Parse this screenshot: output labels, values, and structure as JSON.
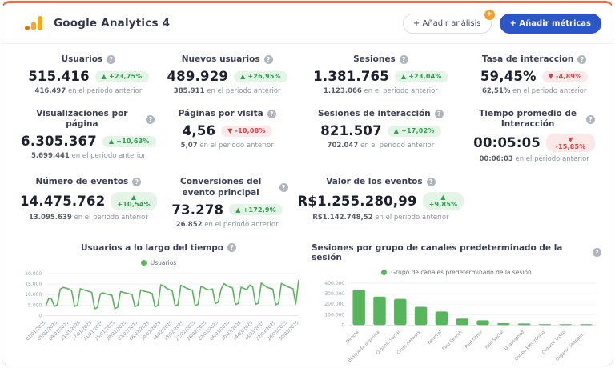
{
  "header": {
    "title": "Google Analytics 4",
    "add_analysis_label": "+ Añadir análisis",
    "add_analysis_badge": "+",
    "add_metrics_label": "+ Añadir métricas"
  },
  "colors": {
    "accent_top_border": "#ED6A45",
    "brand_orange": "#F9AB00",
    "chart_green": "#57B65B",
    "badge_green_text": "#2F9E4F",
    "badge_red_text": "#DE4040",
    "primary_button_blue": "#2B55C8"
  },
  "metrics": [
    {
      "title": "Usuarios",
      "value": "515.416",
      "change": "▲ +23,75%",
      "direction": "up",
      "prev_value": "416.497",
      "prev_text": "en el periodo anterior"
    },
    {
      "title": "Nuevos usuarios",
      "value": "489.929",
      "change": "▲ +26,95%",
      "direction": "up",
      "prev_value": "385.911",
      "prev_text": "en el periodo anterior"
    },
    {
      "title": "Sesiones",
      "value": "1.381.765",
      "change": "▲ +23,04%",
      "direction": "up",
      "prev_value": "1.123.066",
      "prev_text": "en el periodo anterior"
    },
    {
      "title": "Tasa de interaccion",
      "value": "59,45%",
      "change": "▼ -4,89%",
      "direction": "down",
      "prev_value": "62,51%",
      "prev_text": "en el periodo anterior"
    },
    {
      "title": "Visualizaciones por página",
      "value": "6.305.367",
      "change": "▲ +10,63%",
      "direction": "up",
      "prev_value": "5.699.441",
      "prev_text": "en el periodo anterior"
    },
    {
      "title": "Páginas por visita",
      "value": "4,56",
      "change": "▼ -10,08%",
      "direction": "down",
      "prev_value": "5,07",
      "prev_text": "en el periodo anterior"
    },
    {
      "title": "Sesiones de interacción",
      "value": "821.507",
      "change": "▲ +17,02%",
      "direction": "up",
      "prev_value": "702.047",
      "prev_text": "en el periodo anterior"
    },
    {
      "title": "Tiempo promedio de Interacción",
      "value": "00:05:05",
      "change": "▼ -15,85%",
      "direction": "down",
      "prev_value": "00:06:03",
      "prev_text": "en el periodo anterior"
    },
    {
      "title": "Número de eventos",
      "value": "14.475.762",
      "change": "▲ +10,54%",
      "direction": "up",
      "prev_value": "13.095.639",
      "prev_text": "en el periodo anterior"
    },
    {
      "title": "Conversiones del evento principal",
      "value": "73.278",
      "change": "▲ +172,9%",
      "direction": "up",
      "prev_value": "26.852",
      "prev_text": "en el periodo anterior"
    },
    {
      "title": "Valor de los eventos",
      "value": "R$1.255.280,99",
      "change": "▲ +9,85%",
      "direction": "up",
      "prev_value": "R$1.142.748,52",
      "prev_text": "en el periodo anterior"
    }
  ],
  "chart_data": [
    {
      "type": "line",
      "title": "Usuarios a lo largo del tiempo",
      "legend": "Usuarios",
      "color": "#57B65B",
      "ylim": [
        0,
        20000
      ],
      "y_ticks": [
        0,
        5000,
        10000,
        15000,
        20000
      ],
      "y_tick_labels": [
        "0",
        "5.000",
        "10.000",
        "15.000",
        "20.000"
      ],
      "grid": true,
      "legend_position": "top",
      "x_tick_every": 4,
      "x_tick_labels": [
        "01/01/2025",
        "05/01/2025",
        "09/01/2025",
        "13/01/2025",
        "17/01/2025",
        "21/01/2025",
        "25/01/2025",
        "29/01/2025",
        "02/02/2025",
        "06/02/2025",
        "10/02/2025",
        "14/02/2025",
        "18/02/2025",
        "22/02/2025",
        "26/02/2025",
        "02/03/2025",
        "06/03/2025",
        "10/03/2025",
        "14/03/2025",
        "18/03/2025",
        "22/03/2025",
        "26/03/2025",
        "30/03/2025"
      ],
      "values": [
        4500,
        8200,
        7800,
        4400,
        5000,
        12500,
        13400,
        13100,
        12600,
        11800,
        4300,
        4900,
        12800,
        12300,
        11900,
        11500,
        11000,
        3200,
        3800,
        10400,
        10800,
        10300,
        10000,
        9600,
        3300,
        3900,
        11400,
        11000,
        10700,
        10400,
        10000,
        4200,
        4800,
        12200,
        11700,
        11300,
        11000,
        10500,
        4100,
        4700,
        14600,
        14200,
        13000,
        12400,
        11700,
        4600,
        5200,
        14400,
        13700,
        13000,
        12500,
        12000,
        4700,
        5300,
        13900,
        13300,
        12500,
        12200,
        12700,
        5700,
        6300,
        12500,
        15200,
        14300,
        13600,
        13100,
        5200,
        5800,
        13500,
        12900,
        12400,
        14500,
        13700,
        5300,
        5900,
        15500,
        14400,
        13500,
        13000,
        12600,
        5100,
        5700,
        15300,
        14600,
        13800,
        13300,
        12800,
        5500,
        16800
      ]
    },
    {
      "type": "bar",
      "title": "Sesiones por grupo de canales predeterminado de la sesión",
      "legend": "Grupo de canales predeterminado de la sesión",
      "color": "#57B65B",
      "ylim": [
        0,
        400000
      ],
      "y_ticks": [
        0,
        100000,
        200000,
        300000,
        400000
      ],
      "y_tick_labels": [
        "0",
        "100.000",
        "200.000",
        "300.000",
        "400.000"
      ],
      "grid": true,
      "legend_position": "top",
      "categories": [
        "Directa",
        "Búsqueda orgánica",
        "Organic Social",
        "Cross-network",
        "Referral",
        "Paid Search",
        "Paid Other",
        "Paid Social",
        "Unassigned",
        "Correo Electrónico",
        "Organic Video",
        "Organic Shoppin..."
      ],
      "values": [
        335000,
        272000,
        250000,
        175000,
        130000,
        62000,
        45000,
        18000,
        15000,
        6000,
        4000,
        3000
      ]
    }
  ]
}
